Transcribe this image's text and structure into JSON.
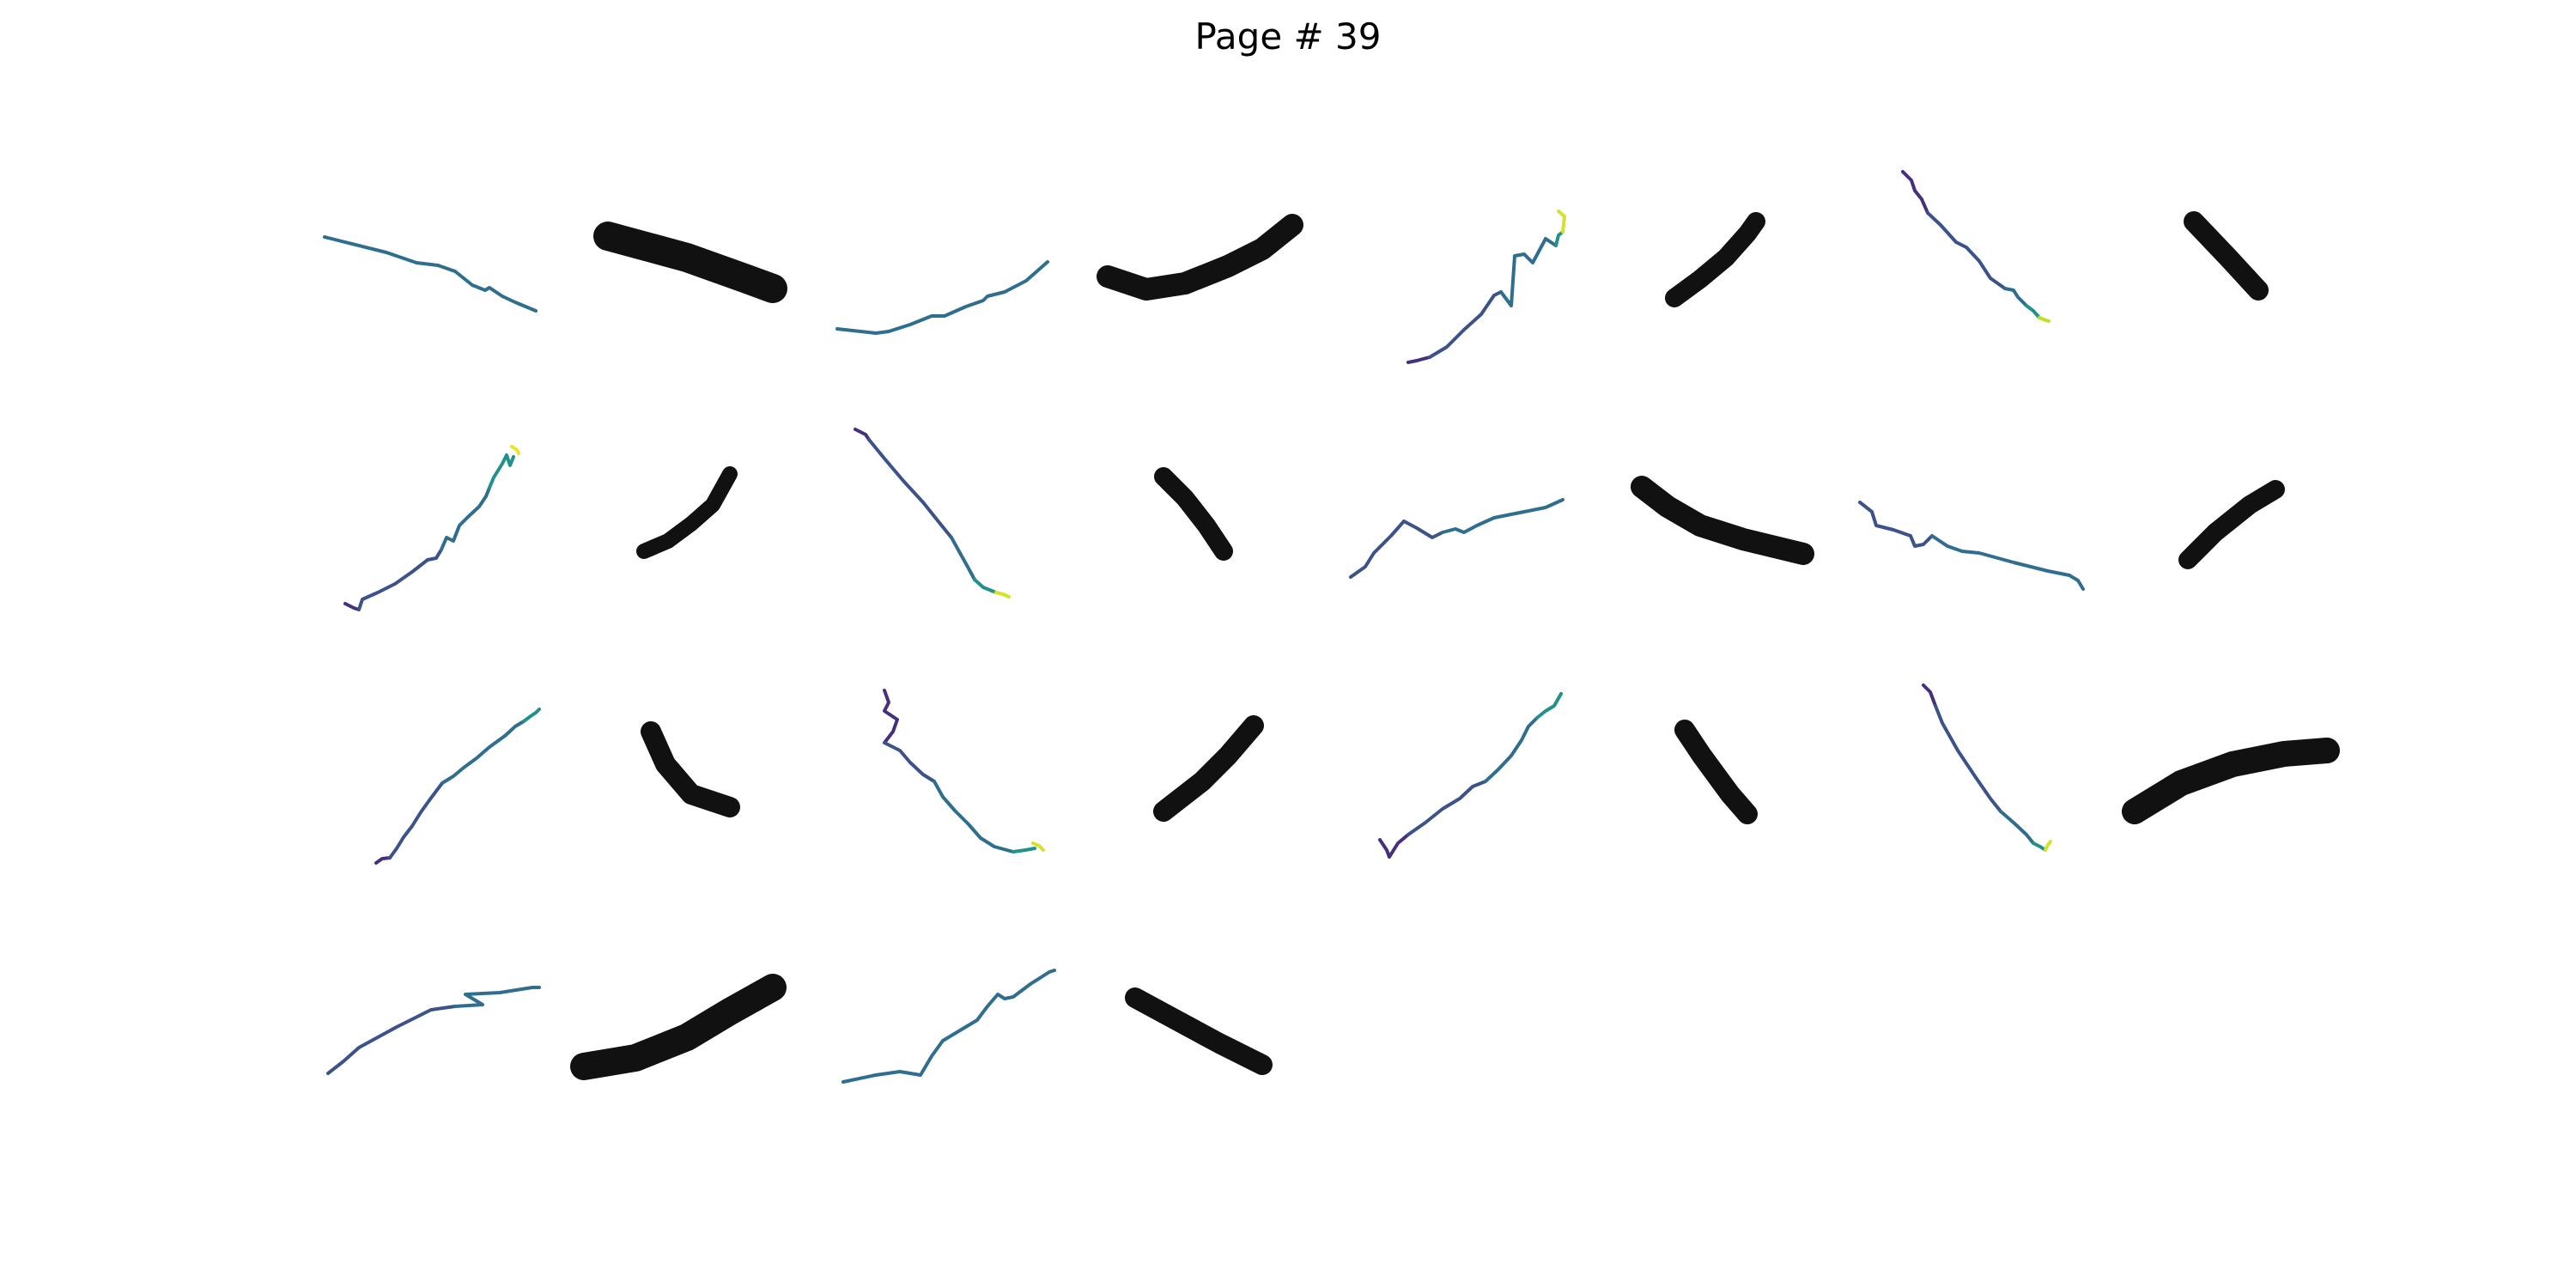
{
  "page_title": "Page # 39",
  "colors": {
    "background": "#ffffff",
    "ink": "#111111",
    "trace_start": "#440154",
    "trace_mid": "#31688e",
    "trace_teal": "#21918c",
    "trace_end": "#fde725"
  },
  "panels": [
    {
      "kind": "trajectory",
      "row": 1,
      "col": 1
    },
    {
      "kind": "stroke-image",
      "row": 1,
      "col": 2
    },
    {
      "kind": "trajectory",
      "row": 1,
      "col": 3
    },
    {
      "kind": "stroke-image",
      "row": 1,
      "col": 4
    },
    {
      "kind": "trajectory",
      "row": 1,
      "col": 5
    },
    {
      "kind": "stroke-image",
      "row": 1,
      "col": 6
    },
    {
      "kind": "trajectory",
      "row": 1,
      "col": 7
    },
    {
      "kind": "stroke-image",
      "row": 1,
      "col": 8
    },
    {
      "kind": "trajectory",
      "row": 2,
      "col": 1
    },
    {
      "kind": "stroke-image",
      "row": 2,
      "col": 2
    },
    {
      "kind": "trajectory",
      "row": 2,
      "col": 3
    },
    {
      "kind": "stroke-image",
      "row": 2,
      "col": 4
    },
    {
      "kind": "trajectory",
      "row": 2,
      "col": 5
    },
    {
      "kind": "stroke-image",
      "row": 2,
      "col": 6
    },
    {
      "kind": "trajectory",
      "row": 2,
      "col": 7
    },
    {
      "kind": "stroke-image",
      "row": 2,
      "col": 8
    },
    {
      "kind": "trajectory",
      "row": 3,
      "col": 1
    },
    {
      "kind": "stroke-image",
      "row": 3,
      "col": 2
    },
    {
      "kind": "trajectory",
      "row": 3,
      "col": 3
    },
    {
      "kind": "stroke-image",
      "row": 3,
      "col": 4
    },
    {
      "kind": "trajectory",
      "row": 3,
      "col": 5
    },
    {
      "kind": "stroke-image",
      "row": 3,
      "col": 6
    },
    {
      "kind": "trajectory",
      "row": 3,
      "col": 7
    },
    {
      "kind": "stroke-image",
      "row": 3,
      "col": 8
    },
    {
      "kind": "trajectory",
      "row": 4,
      "col": 1
    },
    {
      "kind": "stroke-image",
      "row": 4,
      "col": 2
    },
    {
      "kind": "trajectory",
      "row": 4,
      "col": 3
    },
    {
      "kind": "stroke-image",
      "row": 4,
      "col": 4
    }
  ]
}
